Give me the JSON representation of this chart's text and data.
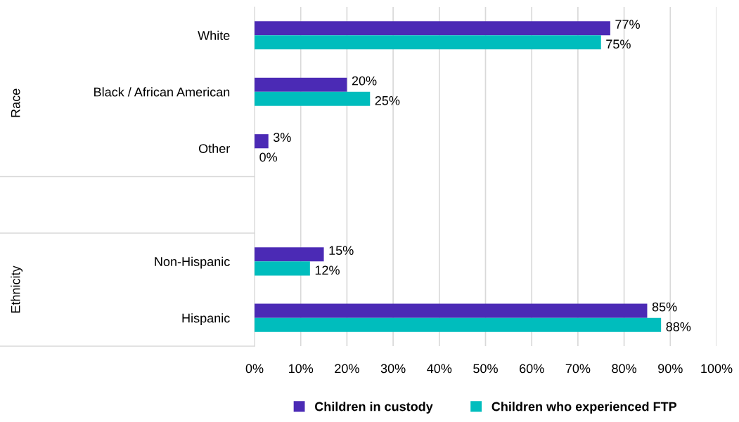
{
  "chart_data": {
    "type": "bar",
    "orientation": "horizontal",
    "categories": [
      "White",
      "Black / African American",
      "Other",
      null,
      "Non-Hispanic",
      "Hispanic"
    ],
    "series": [
      {
        "name": "Children in custody",
        "color": "#4b2ab5",
        "values": [
          77,
          20,
          3,
          null,
          15,
          85
        ],
        "value_labels": [
          "77%",
          "20%",
          "3%",
          null,
          "15%",
          "85%"
        ]
      },
      {
        "name": "Children who experienced FTP",
        "color": "#00bdbd",
        "values": [
          75,
          25,
          0,
          null,
          12,
          88
        ],
        "value_labels": [
          "75%",
          "25%",
          "0%",
          null,
          "12%",
          "88%"
        ]
      }
    ],
    "xlim": [
      0,
      100
    ],
    "xticks": [
      {
        "value": 0,
        "label": "0%"
      },
      {
        "value": 10,
        "label": "10%"
      },
      {
        "value": 20,
        "label": "20%"
      },
      {
        "value": 30,
        "label": "30%"
      },
      {
        "value": 40,
        "label": "40%"
      },
      {
        "value": 50,
        "label": "50%"
      },
      {
        "value": 60,
        "label": "60%"
      },
      {
        "value": 70,
        "label": "70%"
      },
      {
        "value": 80,
        "label": "80%"
      },
      {
        "value": 90,
        "label": "90%"
      },
      {
        "value": 100,
        "label": "100%"
      }
    ],
    "grid": "x",
    "legend": "bottom",
    "annotations": [
      "Race",
      "Ethnicity"
    ]
  }
}
